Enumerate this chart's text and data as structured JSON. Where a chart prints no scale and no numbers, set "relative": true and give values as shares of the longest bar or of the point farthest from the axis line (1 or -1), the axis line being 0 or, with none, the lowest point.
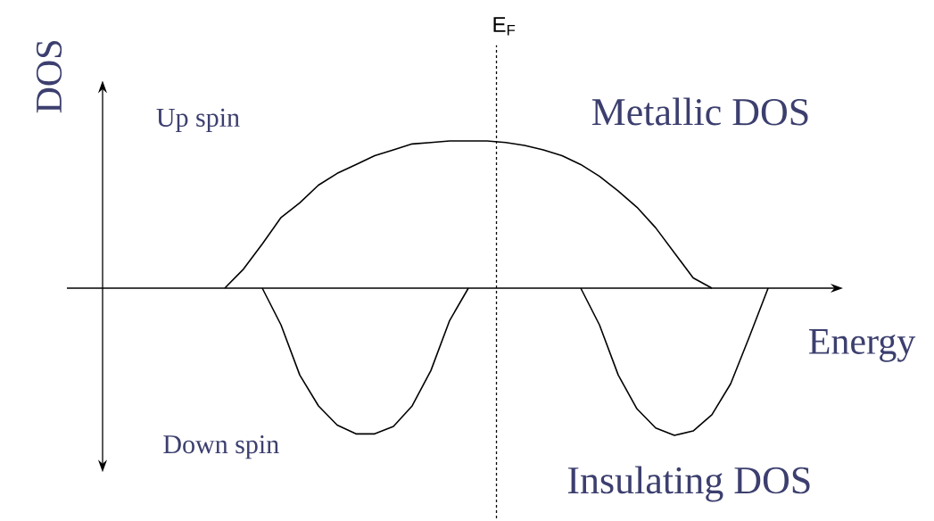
{
  "chart_data": {
    "type": "line",
    "relative": true,
    "xlabel": "Energy",
    "ylabel": "DOS",
    "categories": [
      null,
      null,
      null,
      null,
      null,
      null,
      null,
      null,
      null,
      null,
      null,
      null,
      null,
      null,
      null,
      null,
      null,
      null,
      null,
      null,
      null,
      null,
      null,
      null,
      null,
      null,
      null,
      null,
      null,
      null,
      null,
      null,
      null,
      null,
      null,
      null,
      null,
      null,
      null,
      null,
      null
    ],
    "series": [
      {
        "color": "#000000",
        "values": [
          null,
          null,
          null,
          null,
          null,
          null,
          null,
          0,
          0.13,
          0.3,
          0.48,
          0.58,
          0.7,
          0.78,
          0.84,
          0.9,
          0.94,
          0.98,
          0.99,
          1.0,
          1.0,
          1.0,
          0.99,
          0.97,
          0.94,
          0.9,
          0.84,
          0.76,
          0.66,
          0.55,
          0.41,
          0.24,
          0.07,
          0,
          null,
          null,
          null,
          null,
          null,
          null,
          null
        ]
      },
      {
        "color": "#000000",
        "values": [
          null,
          null,
          null,
          null,
          null,
          null,
          null,
          null,
          null,
          0,
          -0.25,
          -0.59,
          -0.8,
          -0.93,
          -0.99,
          -0.99,
          -0.94,
          -0.8,
          -0.56,
          -0.22,
          0,
          null,
          null,
          null,
          null,
          null,
          0,
          -0.25,
          -0.59,
          -0.82,
          -0.95,
          -1.0,
          -0.97,
          -0.86,
          -0.65,
          -0.33,
          0,
          null,
          null,
          null,
          null
        ]
      }
    ],
    "annotations": [
      "Up spin",
      "Down spin",
      "Metallic DOS",
      "Insulating DOS",
      "E$_{F}$"
    ],
    "marker": "none",
    "line_style": "solid"
  }
}
